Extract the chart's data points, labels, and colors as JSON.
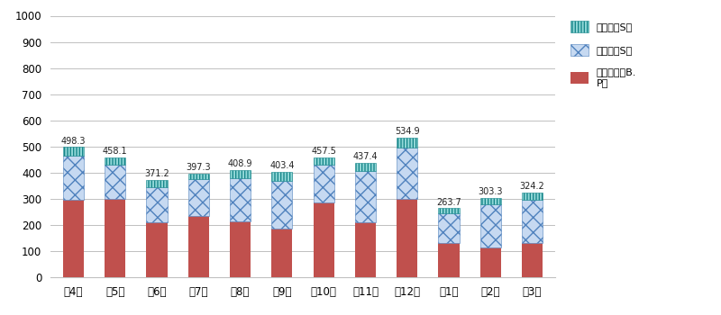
{
  "months": [
    "で4月",
    "で5月",
    "で6月",
    "で7月",
    "で8月",
    "で9月",
    "で10月",
    "で11月",
    "で12月",
    "で1月",
    "で2月",
    "で3月"
  ],
  "totals": [
    498.3,
    458.1,
    371.2,
    397.3,
    408.9,
    403.4,
    457.5,
    437.4,
    534.9,
    263.7,
    303.3,
    324.2
  ],
  "omuta": [
    295,
    300,
    210,
    235,
    215,
    185,
    285,
    210,
    300,
    130,
    115,
    130
  ],
  "chikugo": [
    170,
    130,
    135,
    140,
    165,
    185,
    145,
    195,
    195,
    115,
    165,
    165
  ],
  "oki": [
    33.3,
    28.1,
    26.2,
    22.3,
    28.9,
    33.4,
    27.5,
    32.4,
    39.9,
    18.7,
    23.3,
    29.2
  ],
  "omuta_color": "#c0504d",
  "chikugo_face": "#c6d9f1",
  "chikugo_edge": "#4f81bd",
  "oki_face": "#92d8d8",
  "oki_edge": "#17868a",
  "label_omuta": "大牧田市（B.\nP）",
  "label_chikugo": "筑後市（S）",
  "label_oki": "大木町（S）",
  "ylim": [
    0,
    1000
  ],
  "yticks": [
    0,
    100,
    200,
    300,
    400,
    500,
    600,
    700,
    800,
    900,
    1000
  ],
  "grid_color": "#c0c0c0",
  "bg_color": "#ffffff"
}
